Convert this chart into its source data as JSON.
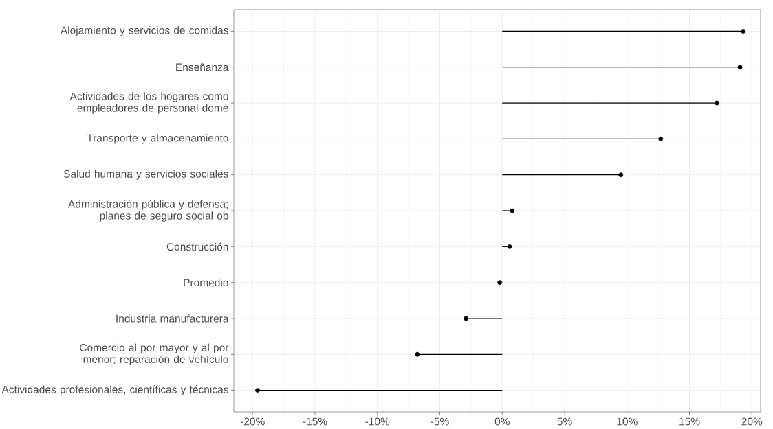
{
  "chart_data": {
    "type": "lollipop",
    "orientation": "horizontal",
    "categories": [
      "Alojamiento y servicios de comidas",
      "Enseñanza",
      "Actividades de los hogares como empleadores de personal domé",
      "Transporte y almacenamiento",
      "Salud humana y servicios sociales",
      "Administración pública y defensa; planes de seguro social ob",
      "Construcción",
      "Promedio",
      "Industria manufacturera",
      "Comercio al por mayor y al por menor; reparación de vehículo",
      "Actividades profesionales, científicas y técnicas"
    ],
    "values": [
      19.3,
      19.05,
      17.2,
      12.7,
      9.5,
      0.8,
      0.6,
      -0.2,
      -2.9,
      -6.8,
      -19.6
    ],
    "color": "#000000",
    "marker": "circle",
    "grid": true,
    "xlim": [
      -21.5,
      20.7
    ],
    "xticks": [
      {
        "value": -20,
        "label": "-20%"
      },
      {
        "value": -15,
        "label": "-15%"
      },
      {
        "value": -10,
        "label": "-10%"
      },
      {
        "value": -5,
        "label": "-5%"
      },
      {
        "value": 0,
        "label": "0%"
      },
      {
        "value": 5,
        "label": "5%"
      },
      {
        "value": 10,
        "label": "10%"
      },
      {
        "value": 15,
        "label": "15%"
      },
      {
        "value": 20,
        "label": "20%"
      }
    ]
  }
}
